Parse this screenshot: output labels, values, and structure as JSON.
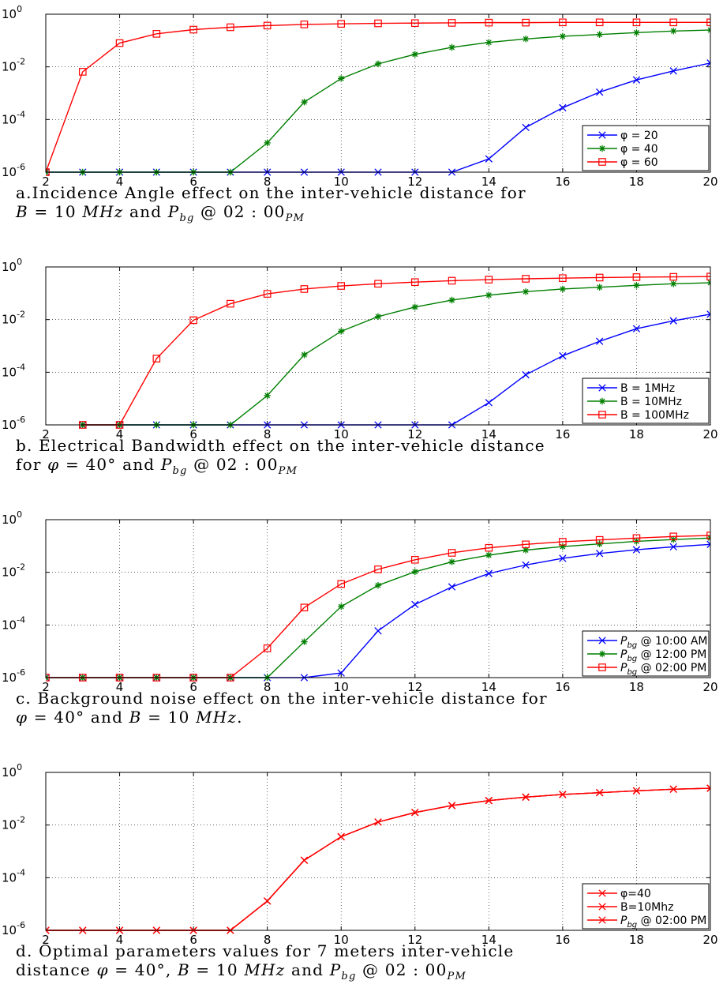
{
  "axes": {
    "xlim": [
      2,
      20
    ],
    "x_ticks": [
      "2",
      "4",
      "6",
      "8",
      "10",
      "12",
      "14",
      "16",
      "18",
      "20"
    ],
    "y_scale": "log",
    "ylim": [
      1e-06,
      1
    ],
    "y_ticks": [
      {
        "base": "10",
        "exp": "0"
      },
      {
        "base": "10",
        "exp": "-2"
      },
      {
        "base": "10",
        "exp": "-4"
      },
      {
        "base": "10",
        "exp": "-6"
      }
    ],
    "grid": "dotted"
  },
  "colors": {
    "blue": "#0000ff",
    "green": "#007f00",
    "red": "#ff0000"
  },
  "panels": [
    {
      "caption_line1": "a.Incidence Angle effect on the inter-vehicle distance for",
      "caption_line2_parts": [
        {
          "t": "B",
          "i": true
        },
        {
          "t": " = 10 "
        },
        {
          "t": "MHz",
          "i": true
        },
        {
          "t": " and "
        },
        {
          "t": "P",
          "i": true
        },
        {
          "t": "bg",
          "sub": true
        },
        {
          "t": " @ 02 : 00"
        },
        {
          "t": "PM",
          "sub": true
        }
      ]
    },
    {
      "caption_line1": "b. Electrical Bandwidth effect on the inter-vehicle distance",
      "caption_line2_parts": [
        {
          "t": "for "
        },
        {
          "t": "φ",
          "i": true
        },
        {
          "t": " = 40° and "
        },
        {
          "t": "P",
          "i": true
        },
        {
          "t": "bg",
          "sub": true
        },
        {
          "t": " @ 02 : 00"
        },
        {
          "t": "PM",
          "sub": true
        }
      ]
    },
    {
      "caption_line1": "c. Background noise effect on the inter-vehicle distance for",
      "caption_line2_parts": [
        {
          "t": "φ",
          "i": true
        },
        {
          "t": " = 40° and "
        },
        {
          "t": "B",
          "i": true
        },
        {
          "t": " = 10 "
        },
        {
          "t": "MHz",
          "i": true
        },
        {
          "t": "."
        }
      ]
    },
    {
      "caption_line1": "d. Optimal parameters values for 7 meters inter-vehicle",
      "caption_line2_parts": [
        {
          "t": "distance "
        },
        {
          "t": "φ",
          "i": true
        },
        {
          "t": " = 40°, "
        },
        {
          "t": "B",
          "i": true
        },
        {
          "t": " = 10 "
        },
        {
          "t": "MHz",
          "i": true
        },
        {
          "t": " and "
        },
        {
          "t": "P",
          "i": true
        },
        {
          "t": "bg",
          "sub": true
        },
        {
          "t": " @ 02 : 00"
        },
        {
          "t": "PM",
          "sub": true
        }
      ]
    }
  ],
  "chart_data": [
    {
      "type": "line",
      "x": [
        2,
        3,
        4,
        5,
        6,
        7,
        8,
        9,
        10,
        11,
        12,
        13,
        14,
        15,
        16,
        17,
        18,
        19,
        20
      ],
      "legend_position": "bottom-right",
      "series": [
        {
          "name": "φ = 20",
          "color": "blue",
          "marker": "x",
          "values": [
            1e-06,
            1e-06,
            1e-06,
            1e-06,
            1e-06,
            1e-06,
            1e-06,
            1e-06,
            1e-06,
            1e-06,
            1e-06,
            1e-06,
            3.2e-06,
            5e-05,
            0.00028,
            0.0011,
            0.0032,
            0.007,
            0.014
          ]
        },
        {
          "name": "φ = 40",
          "color": "green",
          "marker": "star",
          "values": [
            1e-06,
            1e-06,
            1e-06,
            1e-06,
            1e-06,
            1e-06,
            1.3e-05,
            0.00046,
            0.0036,
            0.013,
            0.03,
            0.055,
            0.085,
            0.115,
            0.145,
            0.17,
            0.2,
            0.23,
            0.25
          ]
        },
        {
          "name": "φ = 60",
          "color": "red",
          "marker": "square",
          "values": [
            1e-06,
            0.0065,
            0.08,
            0.18,
            0.26,
            0.32,
            0.37,
            0.41,
            0.43,
            0.45,
            0.46,
            0.47,
            0.48,
            0.48,
            0.49,
            0.49,
            0.49,
            0.49,
            0.49
          ]
        }
      ]
    },
    {
      "type": "line",
      "x": [
        3,
        4,
        5,
        6,
        7,
        8,
        9,
        10,
        11,
        12,
        13,
        14,
        15,
        16,
        17,
        18,
        19,
        20
      ],
      "legend_position": "bottom-right",
      "series": [
        {
          "name": "B = 1MHz",
          "color": "blue",
          "marker": "x",
          "values": [
            1e-06,
            1e-06,
            1e-06,
            1e-06,
            1e-06,
            1e-06,
            1e-06,
            1e-06,
            1e-06,
            1e-06,
            1e-06,
            7e-06,
            8e-05,
            0.00042,
            0.0015,
            0.0045,
            0.009,
            0.016
          ]
        },
        {
          "name": "B = 10MHz",
          "color": "green",
          "marker": "star",
          "values": [
            1e-06,
            1e-06,
            1e-06,
            1e-06,
            1e-06,
            1.3e-05,
            0.00046,
            0.0036,
            0.013,
            0.03,
            0.055,
            0.085,
            0.115,
            0.145,
            0.17,
            0.2,
            0.23,
            0.25
          ]
        },
        {
          "name": "B = 100MHz",
          "color": "red",
          "marker": "square",
          "values": [
            1e-06,
            1e-06,
            0.00033,
            0.0095,
            0.04,
            0.095,
            0.145,
            0.19,
            0.23,
            0.265,
            0.3,
            0.33,
            0.355,
            0.375,
            0.395,
            0.41,
            0.42,
            0.43
          ]
        }
      ]
    },
    {
      "type": "line",
      "x": [
        2,
        3,
        4,
        5,
        6,
        7,
        8,
        9,
        10,
        11,
        12,
        13,
        14,
        15,
        16,
        17,
        18,
        19,
        20
      ],
      "legend_position": "bottom-right",
      "series": [
        {
          "name": "P_bg @ 10:00 AM",
          "color": "blue",
          "marker": "x",
          "values": [
            1e-06,
            1e-06,
            1e-06,
            1e-06,
            1e-06,
            1e-06,
            1e-06,
            1e-06,
            1.5e-06,
            6e-05,
            0.0006,
            0.0028,
            0.009,
            0.019,
            0.034,
            0.052,
            0.072,
            0.093,
            0.115
          ]
        },
        {
          "name": "P_bg @ 12:00 PM",
          "color": "green",
          "marker": "star",
          "values": [
            1e-06,
            1e-06,
            1e-06,
            1e-06,
            1e-06,
            1e-06,
            1e-06,
            2.3e-05,
            0.0005,
            0.0032,
            0.0105,
            0.025,
            0.045,
            0.07,
            0.095,
            0.12,
            0.15,
            0.175,
            0.2
          ]
        },
        {
          "name": "P_bg @ 02:00 PM",
          "color": "red",
          "marker": "square",
          "values": [
            1e-06,
            1e-06,
            1e-06,
            1e-06,
            1e-06,
            1e-06,
            1.3e-05,
            0.00046,
            0.0036,
            0.013,
            0.03,
            0.055,
            0.085,
            0.115,
            0.145,
            0.17,
            0.2,
            0.23,
            0.25
          ]
        }
      ]
    },
    {
      "type": "line",
      "x": [
        2,
        3,
        4,
        5,
        6,
        7,
        8,
        9,
        10,
        11,
        12,
        13,
        14,
        15,
        16,
        17,
        18,
        19,
        20
      ],
      "legend_position": "bottom-right",
      "series": [
        {
          "name": "φ=40",
          "color": "red",
          "marker": "x",
          "values": [
            1e-06,
            1e-06,
            1e-06,
            1e-06,
            1e-06,
            1e-06,
            1.3e-05,
            0.00046,
            0.0036,
            0.013,
            0.03,
            0.055,
            0.085,
            0.115,
            0.145,
            0.17,
            0.2,
            0.23,
            0.25
          ]
        },
        {
          "name": "B=10Mhz",
          "color": "red",
          "marker": "x",
          "values": [
            1e-06,
            1e-06,
            1e-06,
            1e-06,
            1e-06,
            1e-06,
            1.3e-05,
            0.00046,
            0.0036,
            0.013,
            0.03,
            0.055,
            0.085,
            0.115,
            0.145,
            0.17,
            0.2,
            0.23,
            0.25
          ]
        },
        {
          "name": "P_bg @ 02:00 PM",
          "color": "red",
          "marker": "x",
          "values": [
            1e-06,
            1e-06,
            1e-06,
            1e-06,
            1e-06,
            1e-06,
            1.3e-05,
            0.00046,
            0.0036,
            0.013,
            0.03,
            0.055,
            0.085,
            0.115,
            0.145,
            0.17,
            0.2,
            0.23,
            0.25
          ]
        }
      ]
    }
  ]
}
